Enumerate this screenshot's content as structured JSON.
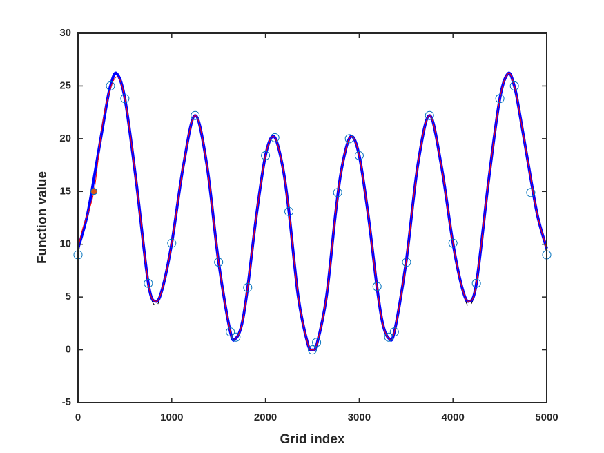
{
  "chart_data": {
    "type": "line",
    "xlabel": "Grid index",
    "ylabel": "Function value",
    "xlim": [
      0,
      5000
    ],
    "ylim": [
      -5,
      30
    ],
    "xticks": [
      0,
      1000,
      2000,
      3000,
      4000,
      5000
    ],
    "yticks": [
      -5,
      0,
      5,
      10,
      15,
      20,
      25,
      30
    ],
    "series": [
      {
        "style": "dashed",
        "color": "#000000",
        "x": [
          0,
          100,
          200,
          300,
          346,
          410,
          500,
          620,
          750,
          830,
          900,
          1000,
          1125,
          1250,
          1375,
          1500,
          1625,
          1685,
          1750,
          1810,
          1900,
          2000,
          2090,
          2180,
          2250,
          2350,
          2450,
          2500,
          2550,
          2650,
          2750,
          2820,
          2910,
          3000,
          3100,
          3190,
          3250,
          3315,
          3375,
          3500,
          3625,
          3750,
          3875,
          4000,
          4100,
          4170,
          4250,
          4380,
          4500,
          4590,
          4654,
          4700,
          4800,
          4900,
          5000
        ],
        "values": [
          9.2,
          12.8,
          17.8,
          23,
          25,
          26.2,
          23.8,
          16,
          6.3,
          4.2,
          5.8,
          10.1,
          17.5,
          22.2,
          17.5,
          8.3,
          1.7,
          1.1,
          2.5,
          5.9,
          12.5,
          18.4,
          20.2,
          17.5,
          13.1,
          5,
          0.6,
          0,
          0.6,
          5,
          13.1,
          17.5,
          20.2,
          18.4,
          12.5,
          5.9,
          2.5,
          1.1,
          1.7,
          8.3,
          17.5,
          22.2,
          17.5,
          10.1,
          5.8,
          4.2,
          6.3,
          16,
          23.8,
          26.2,
          25,
          23,
          17.8,
          12.8,
          9.2
        ]
      },
      {
        "style": "thick",
        "color": "#0000ff",
        "x": [
          0,
          100,
          200,
          300,
          346,
          410,
          500,
          620,
          750,
          830,
          900,
          1000,
          1125,
          1250,
          1375,
          1500,
          1625,
          1685,
          1750,
          1810,
          1900,
          2000,
          2090,
          2180,
          2250,
          2350,
          2450,
          2500,
          2550,
          2650,
          2750,
          2820,
          2910,
          3000,
          3100,
          3190,
          3250,
          3315,
          3375,
          3500,
          3625,
          3750,
          3875,
          4000,
          4100,
          4170,
          4250,
          4380,
          4500,
          4590,
          4654,
          4700,
          4800,
          4900,
          5000
        ],
        "values": [
          9.6,
          12.8,
          17.8,
          23,
          25,
          26.2,
          23.8,
          16,
          6.3,
          4.6,
          5.8,
          10.1,
          17.5,
          22.2,
          17.5,
          8.3,
          1.7,
          1.1,
          2.5,
          5.9,
          12.5,
          18.4,
          20.2,
          17.5,
          13.1,
          5,
          0.6,
          0,
          0.6,
          5,
          13.1,
          17.5,
          20.2,
          18.4,
          12.5,
          5.9,
          2.5,
          1.1,
          1.7,
          8.3,
          17.5,
          22.2,
          17.5,
          10.1,
          5.8,
          4.6,
          6.3,
          16,
          23.8,
          26.2,
          25,
          23,
          17.8,
          12.8,
          9.6
        ]
      },
      {
        "style": "thin",
        "color": "#ff0000",
        "x": [
          0,
          50,
          170,
          272,
          400,
          500,
          620,
          750,
          830,
          900,
          1000,
          1125,
          1250,
          1375,
          1500,
          1625,
          1685,
          1750,
          1810,
          1900,
          2000,
          2090,
          2180,
          2250,
          2350,
          2450,
          2500,
          2550,
          2650,
          2750,
          2820,
          2910,
          3000,
          3100,
          3190,
          3250,
          3315,
          3375,
          3500,
          3625,
          3750,
          3875,
          4000,
          4100,
          4170,
          4250,
          4380,
          4500,
          4590,
          4654,
          4700,
          4800,
          4900,
          5000
        ],
        "values": [
          9.6,
          11.5,
          15,
          22,
          25.8,
          23.8,
          16,
          6.3,
          4.6,
          5.8,
          10.1,
          17.5,
          22.2,
          17.5,
          8.3,
          1.7,
          1.1,
          2.5,
          5.9,
          12.5,
          18.4,
          20.2,
          17.5,
          13.1,
          5,
          0.6,
          0,
          0.6,
          5,
          13.1,
          17.5,
          20.2,
          18.4,
          12.5,
          5.9,
          2.5,
          1.1,
          1.7,
          8.3,
          17.5,
          22.2,
          17.5,
          10.1,
          5.8,
          4.6,
          6.3,
          16,
          23.8,
          26.2,
          25,
          23,
          17.8,
          12.8,
          9.6
        ]
      },
      {
        "style": "open-markers",
        "color": "#0072bd",
        "x": [
          0,
          346,
          500,
          750,
          1000,
          1250,
          1500,
          1625,
          1685,
          1810,
          2000,
          2100,
          2250,
          2500,
          2545,
          2770,
          2895,
          3000,
          3190,
          3315,
          3375,
          3505,
          3750,
          4000,
          4250,
          4500,
          4655,
          4830,
          5000
        ],
        "values": [
          9,
          25,
          23.8,
          6.3,
          10.1,
          22.2,
          8.3,
          1.7,
          1.2,
          5.9,
          18.4,
          20.1,
          13.1,
          0,
          0.7,
          14.9,
          20,
          18.4,
          6,
          1.2,
          1.7,
          8.3,
          22.2,
          10.1,
          6.3,
          23.8,
          25,
          14.9,
          9
        ]
      },
      {
        "style": "filled-markers",
        "color": "#d95319",
        "x": [
          170
        ],
        "values": [
          15
        ]
      }
    ]
  }
}
